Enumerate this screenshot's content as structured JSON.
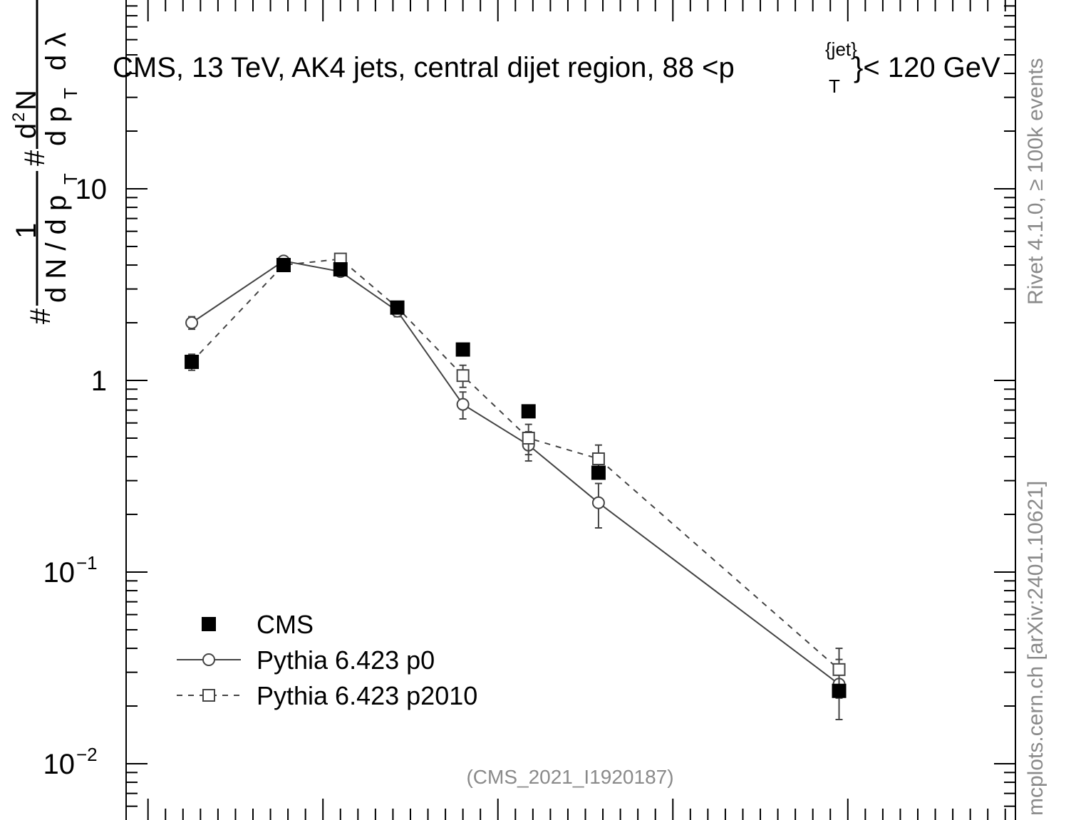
{
  "chart_data": {
    "type": "scatter",
    "title": "CMS, 13 TeV, AK4 jets, central dijet region, 88 <p_T^{jet}< 120 GeV",
    "title_parts": {
      "main": "CMS, 13 TeV, AK4 jets, central dijet region, 88 <p",
      "sup": "{jet}",
      "sub": "T",
      "tail": "}< 120 GeV"
    },
    "ylabel": "1/(dN/dp_T) d²N/(dp_T dλ)",
    "ylabel_parts": {
      "hash": "#",
      "one": "1",
      "den": "d N / d p",
      "den_sub": "T",
      "hash2": "#",
      "num": "d²N",
      "num_d": "d",
      "num_N": "N",
      "num_2": "2",
      "den2": "d p",
      "den2_sub": "T",
      "den2_tail": "d λ"
    },
    "yscale": "log",
    "ylim": [
      0.006,
      60
    ],
    "yticks": [
      {
        "value": 10,
        "label": "10"
      },
      {
        "value": 1,
        "label": "1"
      },
      {
        "value": 0.1,
        "label": "10",
        "exp": "−1"
      },
      {
        "value": 0.01,
        "label": "10",
        "exp": "−2"
      }
    ],
    "xlim": [
      -0.0125,
      0.4958
    ],
    "legend_position": "bottom-left",
    "annotation": "(CMS_2021_I1920187)",
    "side_label": "mcplots.cern.ch [arXiv:2401.10621]",
    "side_label_top": "Rivet 4.1.0, ≥ 100k events",
    "series": [
      {
        "name": "CMS",
        "style": "filled-square",
        "color": "#000000",
        "x": [
          0.025,
          0.0775,
          0.11,
          0.1425,
          0.18,
          0.2175,
          0.2575,
          0.395
        ],
        "y": [
          1.25,
          4.0,
          3.8,
          2.4,
          1.45,
          0.69,
          0.33,
          0.024
        ]
      },
      {
        "name": "Pythia 6.423 p0",
        "style": "open-circle-solid",
        "color": "#444444",
        "x": [
          0.025,
          0.0775,
          0.11,
          0.1425,
          0.18,
          0.2175,
          0.2575,
          0.395
        ],
        "y": [
          2.0,
          4.2,
          3.7,
          2.3,
          0.75,
          0.46,
          0.23,
          0.026
        ],
        "err": [
          0.15,
          0.2,
          0.2,
          0.15,
          0.12,
          0.08,
          0.06,
          0.009
        ]
      },
      {
        "name": "Pythia 6.423 p2010",
        "style": "open-square-dashed",
        "color": "#444444",
        "x": [
          0.025,
          0.0775,
          0.11,
          0.1425,
          0.18,
          0.2175,
          0.2575,
          0.395
        ],
        "y": [
          1.25,
          4.0,
          4.3,
          2.4,
          1.06,
          0.5,
          0.39,
          0.031
        ],
        "err": [
          0.12,
          0.2,
          0.2,
          0.15,
          0.14,
          0.09,
          0.07,
          0.009
        ]
      }
    ]
  }
}
